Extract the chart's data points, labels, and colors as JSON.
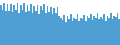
{
  "values": [
    105,
    92,
    110,
    88,
    107,
    90,
    108,
    86,
    104,
    91,
    109,
    85,
    106,
    93,
    111,
    87,
    105,
    89,
    107,
    83,
    101,
    90,
    106,
    82,
    103,
    91,
    108,
    84,
    102,
    86,
    100,
    80,
    96,
    85,
    99,
    76,
    70,
    65,
    78,
    60,
    75,
    68,
    80,
    63,
    72,
    69,
    81,
    64,
    71,
    67,
    79,
    63,
    76,
    70,
    82,
    65,
    75,
    71,
    83,
    67,
    73,
    69,
    80,
    64,
    77,
    71,
    85,
    67,
    77,
    73,
    85,
    69
  ],
  "bar_color": "#4f9fd4",
  "background_color": "#ffffff",
  "ylim_min": 0,
  "ylim_max": 118
}
